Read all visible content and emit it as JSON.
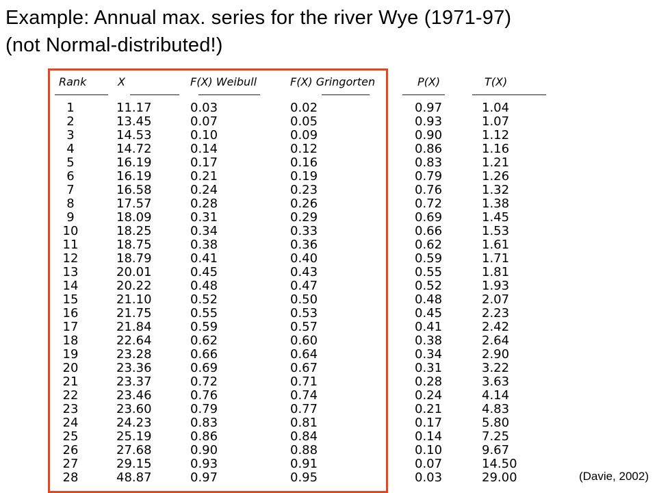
{
  "title": {
    "line1": "Example: Annual max. series for the river Wye (1971-97)",
    "line2": "(not Normal-distributed!)"
  },
  "table": {
    "headers": {
      "rank": "Rank",
      "x": "X",
      "weibull": "F(X) Weibull",
      "gringorten": "F(X) Gringorten",
      "p": "P(X)",
      "t": "T(X)"
    },
    "rank": [
      "1",
      "2",
      "3",
      "4",
      "5",
      "6",
      "7",
      "8",
      "9",
      "10",
      "11",
      "12",
      "13",
      "14",
      "15",
      "16",
      "17",
      "18",
      "19",
      "20",
      "21",
      "22",
      "23",
      "24",
      "25",
      "26",
      "27",
      "28"
    ],
    "x": [
      "11.17",
      "13.45",
      "14.53",
      "14.72",
      "16.19",
      "16.19",
      "16.58",
      "17.57",
      "18.09",
      "18.25",
      "18.75",
      "18.79",
      "20.01",
      "20.22",
      "21.10",
      "21.75",
      "21.84",
      "22.64",
      "23.28",
      "23.36",
      "23.37",
      "23.46",
      "23.60",
      "24.23",
      "25.19",
      "27.68",
      "29.15",
      "48.87"
    ],
    "weibull": [
      "0.03",
      "0.07",
      "0.10",
      "0.14",
      "0.17",
      "0.21",
      "0.24",
      "0.28",
      "0.31",
      "0.34",
      "0.38",
      "0.41",
      "0.45",
      "0.48",
      "0.52",
      "0.55",
      "0.59",
      "0.62",
      "0.66",
      "0.69",
      "0.72",
      "0.76",
      "0.79",
      "0.83",
      "0.86",
      "0.90",
      "0.93",
      "0.97"
    ],
    "gringorten": [
      "0.02",
      "0.05",
      "0.09",
      "0.12",
      "0.16",
      "0.19",
      "0.23",
      "0.26",
      "0.29",
      "0.33",
      "0.36",
      "0.40",
      "0.43",
      "0.47",
      "0.50",
      "0.53",
      "0.57",
      "0.60",
      "0.64",
      "0.67",
      "0.71",
      "0.74",
      "0.77",
      "0.81",
      "0.84",
      "0.88",
      "0.91",
      "0.95"
    ],
    "p": [
      "0.97",
      "0.93",
      "0.90",
      "0.86",
      "0.83",
      "0.79",
      "0.76",
      "0.72",
      "0.69",
      "0.66",
      "0.62",
      "0.59",
      "0.55",
      "0.52",
      "0.48",
      "0.45",
      "0.41",
      "0.38",
      "0.34",
      "0.31",
      "0.28",
      "0.24",
      "0.21",
      "0.17",
      "0.14",
      "0.10",
      "0.07",
      "0.03"
    ],
    "t": [
      "1.04",
      "1.07",
      "1.12",
      "1.16",
      "1.21",
      "1.26",
      "1.32",
      "1.38",
      "1.45",
      "1.53",
      "1.61",
      "1.71",
      "1.81",
      "1.93",
      "2.07",
      "2.23",
      "2.42",
      "2.64",
      "2.90",
      "3.22",
      "3.63",
      "4.14",
      "4.83",
      "5.80",
      "7.25",
      "9.67",
      "14.50",
      "29.00"
    ]
  },
  "credit": "(Davie, 2002)",
  "colors": {
    "highlight_box": "#e2471e",
    "text": "#000000",
    "background": "#ffffff"
  }
}
